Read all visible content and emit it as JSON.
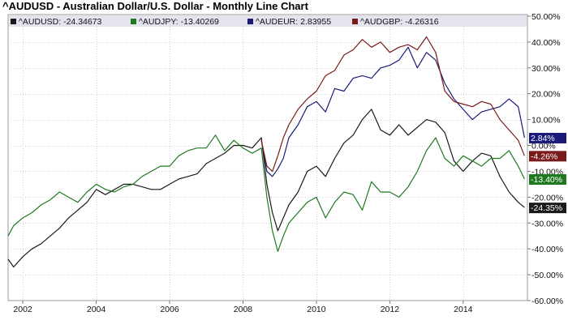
{
  "chart_data": {
    "type": "line",
    "title": "^AUDUSD - Australian Dollar/U.S. Dollar - Monthly Line Chart",
    "xlabel": "",
    "ylabel": "",
    "x_range": [
      2001.6,
      2015.75
    ],
    "ylim": [
      -60,
      50
    ],
    "y_ticks": [
      50,
      40,
      30,
      20,
      10,
      0,
      -10,
      -20,
      -30,
      -40,
      -50,
      -60
    ],
    "y_tick_labels": [
      "50.00%",
      "40.00%",
      "30.00%",
      "20.00%",
      "10.00%",
      "0.00%",
      "-10.00%",
      "-20.00%",
      "-30.00%",
      "-40.00%",
      "-50.00%",
      "-60.00%"
    ],
    "x_ticks": [
      2002,
      2004,
      2006,
      2008,
      2010,
      2012,
      2014
    ],
    "x_tick_labels": [
      "2002",
      "2004",
      "2006",
      "2008",
      "2010",
      "2012",
      "2014"
    ],
    "grid": true,
    "legend_position": "top",
    "series": [
      {
        "name": "^AUDUSD",
        "legend_text": "^AUDUSD: -24.34673",
        "end_label": "-24.35%",
        "color": "#1a1a1a",
        "x": [
          2001.6,
          2001.75,
          2002.0,
          2002.25,
          2002.5,
          2002.75,
          2003.0,
          2003.25,
          2003.5,
          2003.75,
          2004.0,
          2004.25,
          2004.5,
          2004.75,
          2005.0,
          2005.25,
          2005.5,
          2005.75,
          2006.0,
          2006.25,
          2006.5,
          2006.75,
          2007.0,
          2007.25,
          2007.5,
          2007.75,
          2008.0,
          2008.25,
          2008.5,
          2008.65,
          2008.8,
          2008.95,
          2009.1,
          2009.25,
          2009.5,
          2009.75,
          2010.0,
          2010.25,
          2010.5,
          2010.75,
          2011.0,
          2011.25,
          2011.5,
          2011.75,
          2012.0,
          2012.25,
          2012.5,
          2012.75,
          2013.0,
          2013.25,
          2013.5,
          2013.75,
          2014.0,
          2014.25,
          2014.5,
          2014.75,
          2015.0,
          2015.25,
          2015.5,
          2015.67
        ],
        "values": [
          -44,
          -47,
          -43,
          -40,
          -38,
          -35,
          -32,
          -28,
          -25,
          -22,
          -17,
          -19,
          -17,
          -15,
          -15,
          -16,
          -17,
          -17,
          -15,
          -13,
          -12,
          -11,
          -7,
          -5,
          -3,
          0,
          0,
          -1,
          3,
          -15,
          -26,
          -33,
          -28,
          -23,
          -18,
          -10,
          -8,
          -12,
          -5,
          1,
          4,
          10,
          14,
          6,
          4,
          8,
          4,
          7,
          10,
          9,
          5,
          -6,
          -10,
          -6,
          -3,
          -4,
          -12,
          -18,
          -22,
          -24
        ]
      },
      {
        "name": "^AUDJPY",
        "legend_text": "^AUDJPY: -13.40269",
        "end_label": "-13.40%",
        "color": "#1f7a1f",
        "x": [
          2001.6,
          2001.75,
          2002.0,
          2002.25,
          2002.5,
          2002.75,
          2003.0,
          2003.25,
          2003.5,
          2003.75,
          2004.0,
          2004.25,
          2004.5,
          2004.75,
          2005.0,
          2005.25,
          2005.5,
          2005.75,
          2006.0,
          2006.25,
          2006.5,
          2006.75,
          2007.0,
          2007.25,
          2007.5,
          2007.75,
          2008.0,
          2008.25,
          2008.5,
          2008.65,
          2008.8,
          2008.95,
          2009.1,
          2009.25,
          2009.5,
          2009.75,
          2010.0,
          2010.25,
          2010.5,
          2010.75,
          2011.0,
          2011.25,
          2011.5,
          2011.75,
          2012.0,
          2012.25,
          2012.5,
          2012.75,
          2013.0,
          2013.25,
          2013.5,
          2013.75,
          2014.0,
          2014.25,
          2014.5,
          2014.75,
          2015.0,
          2015.25,
          2015.5,
          2015.67
        ],
        "values": [
          -35,
          -31,
          -28,
          -26,
          -23,
          -21,
          -18,
          -20,
          -22,
          -18,
          -15,
          -17,
          -18,
          -16,
          -15,
          -12,
          -10,
          -8,
          -8,
          -4,
          -2,
          -1,
          -1,
          4,
          -2,
          2,
          -1,
          -3,
          -1,
          -20,
          -33,
          -41,
          -35,
          -30,
          -26,
          -22,
          -20,
          -28,
          -22,
          -18,
          -19,
          -25,
          -14,
          -18,
          -18,
          -20,
          -16,
          -10,
          -2,
          3,
          -5,
          -8,
          -4,
          -6,
          -8,
          -5,
          -5,
          -2,
          -8,
          -13
        ]
      },
      {
        "name": "^AUDEUR",
        "legend_text": "^AUDEUR: 2.83955",
        "end_label": "2.84%",
        "color": "#1a1a7a",
        "x": [
          2008.5,
          2008.65,
          2008.8,
          2008.95,
          2009.1,
          2009.25,
          2009.5,
          2009.75,
          2010.0,
          2010.25,
          2010.5,
          2010.75,
          2011.0,
          2011.25,
          2011.5,
          2011.75,
          2012.0,
          2012.25,
          2012.5,
          2012.75,
          2013.0,
          2013.25,
          2013.5,
          2013.75,
          2014.0,
          2014.25,
          2014.5,
          2014.75,
          2015.0,
          2015.25,
          2015.5,
          2015.67
        ],
        "values": [
          2,
          -10,
          -12,
          -9,
          -5,
          3,
          8,
          15,
          17,
          13,
          22,
          21,
          26,
          27,
          26,
          30,
          31,
          33,
          38,
          30,
          36,
          33,
          24,
          18,
          14,
          10,
          13,
          14,
          15,
          18,
          15,
          3
        ]
      },
      {
        "name": "^AUDGBP",
        "legend_text": "^AUDGBP: -4.26316",
        "end_label": "-4.26%",
        "color": "#7a1a1a",
        "x": [
          2008.5,
          2008.65,
          2008.8,
          2008.95,
          2009.1,
          2009.25,
          2009.5,
          2009.75,
          2010.0,
          2010.25,
          2010.5,
          2010.75,
          2011.0,
          2011.25,
          2011.5,
          2011.75,
          2012.0,
          2012.25,
          2012.5,
          2012.75,
          2013.0,
          2013.25,
          2013.5,
          2013.75,
          2014.0,
          2014.25,
          2014.5,
          2014.75,
          2015.0,
          2015.25,
          2015.5,
          2015.67
        ],
        "values": [
          2,
          -8,
          -10,
          -4,
          3,
          8,
          14,
          18,
          21,
          27,
          29,
          35,
          37,
          41,
          38,
          40,
          36,
          38,
          39,
          37,
          42,
          36,
          21,
          17,
          16,
          15,
          17,
          16,
          10,
          6,
          2,
          -4
        ]
      }
    ]
  }
}
